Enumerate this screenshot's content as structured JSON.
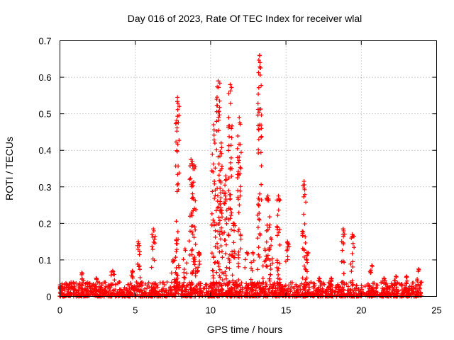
{
  "chart_data": {
    "type": "scatter",
    "title": "Day 016 of 2023, Rate Of TEC Index for receiver wlal",
    "xlabel": "GPS time / hours",
    "ylabel": "ROTI / TECUs",
    "xlim": [
      0,
      25
    ],
    "ylim": [
      0,
      0.7
    ],
    "x_ticks": [
      0,
      5,
      10,
      15,
      20,
      25
    ],
    "x_tick_labels": [
      "0",
      "5",
      "10",
      "15",
      "20",
      "25"
    ],
    "y_ticks": [
      0,
      0.1,
      0.2,
      0.3,
      0.4,
      0.5,
      0.6,
      0.7
    ],
    "y_tick_labels": [
      "0",
      "0.1",
      "0.2",
      "0.3",
      "0.4",
      "0.5",
      "0.6",
      "0.7"
    ],
    "grid": true,
    "marker": "+",
    "color": "#ff0000",
    "baseline": {
      "x_start": 0,
      "x_end": 24,
      "typical_max": 0.04
    },
    "spikes": [
      {
        "x": 0.1,
        "peak": 0.025
      },
      {
        "x": 1.45,
        "peak": 0.065
      },
      {
        "x": 2.4,
        "peak": 0.05
      },
      {
        "x": 3.5,
        "peak": 0.07
      },
      {
        "x": 4.8,
        "peak": 0.07
      },
      {
        "x": 5.2,
        "peak": 0.15
      },
      {
        "x": 6.2,
        "peak": 0.185
      },
      {
        "x": 7.5,
        "peak": 0.1
      },
      {
        "x": 7.8,
        "peak": 0.545
      },
      {
        "x": 8.3,
        "peak": 0.13
      },
      {
        "x": 8.7,
        "peak": 0.375
      },
      {
        "x": 8.9,
        "peak": 0.36
      },
      {
        "x": 9.2,
        "peak": 0.12
      },
      {
        "x": 10.2,
        "peak": 0.47
      },
      {
        "x": 10.5,
        "peak": 0.59
      },
      {
        "x": 10.7,
        "peak": 0.42
      },
      {
        "x": 11.0,
        "peak": 0.33
      },
      {
        "x": 11.3,
        "peak": 0.58
      },
      {
        "x": 11.5,
        "peak": 0.2
      },
      {
        "x": 11.9,
        "peak": 0.49
      },
      {
        "x": 12.4,
        "peak": 0.12
      },
      {
        "x": 12.8,
        "peak": 0.12
      },
      {
        "x": 13.25,
        "peak": 0.66
      },
      {
        "x": 13.6,
        "peak": 0.13
      },
      {
        "x": 13.8,
        "peak": 0.275
      },
      {
        "x": 14.0,
        "peak": 0.16
      },
      {
        "x": 14.5,
        "peak": 0.275
      },
      {
        "x": 15.1,
        "peak": 0.15
      },
      {
        "x": 16.2,
        "peak": 0.315
      },
      {
        "x": 16.4,
        "peak": 0.12
      },
      {
        "x": 17.2,
        "peak": 0.05
      },
      {
        "x": 18.0,
        "peak": 0.05
      },
      {
        "x": 18.8,
        "peak": 0.185
      },
      {
        "x": 19.4,
        "peak": 0.17
      },
      {
        "x": 20.7,
        "peak": 0.085
      },
      {
        "x": 21.5,
        "peak": 0.05
      },
      {
        "x": 22.3,
        "peak": 0.055
      },
      {
        "x": 23.0,
        "peak": 0.055
      },
      {
        "x": 23.8,
        "peak": 0.075
      }
    ]
  }
}
